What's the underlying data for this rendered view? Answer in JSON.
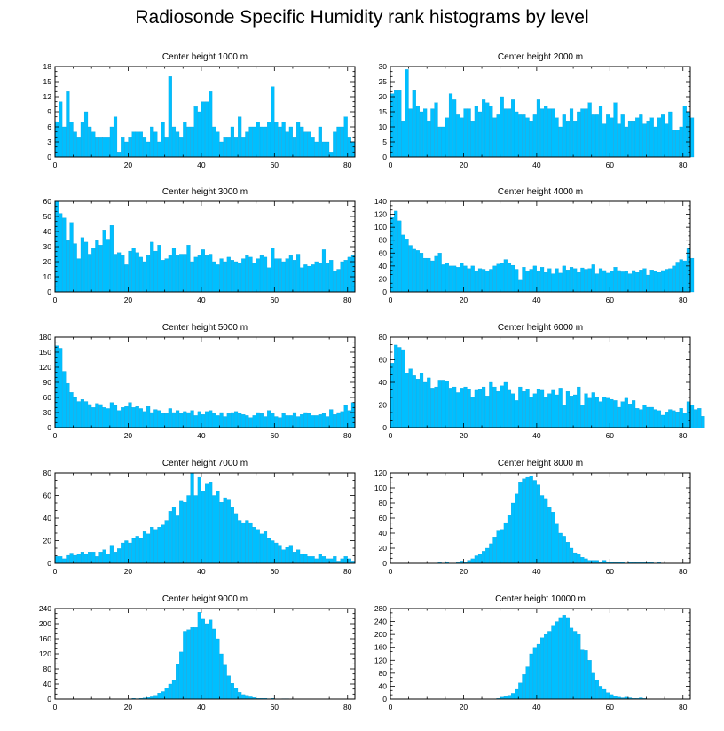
{
  "figure": {
    "title": "Radiosonde Specific Humidity rank histograms by level"
  },
  "colors": {
    "bar": "#00BFFF",
    "bar_edge": "#0099d6",
    "axis": "#000000"
  },
  "chart_data": [
    {
      "type": "bar",
      "title": "Center height 1000 m",
      "xlim": [
        0,
        82
      ],
      "ylim": [
        0,
        18
      ],
      "yticks": [
        0,
        3,
        6,
        9,
        12,
        15,
        18
      ],
      "xticks": [
        0,
        20,
        40,
        60,
        80
      ],
      "values": [
        7,
        11,
        6,
        13,
        7,
        5,
        4,
        7,
        9,
        6,
        5,
        4,
        4,
        4,
        4,
        6,
        8,
        1,
        4,
        3,
        4,
        5,
        5,
        5,
        4,
        3,
        6,
        5,
        3,
        7,
        4,
        16,
        6,
        5,
        4,
        7,
        6,
        6,
        10,
        9,
        11,
        11,
        13,
        6,
        5,
        3,
        4,
        4,
        6,
        4,
        8,
        4,
        5,
        6,
        6,
        7,
        6,
        6,
        7,
        14,
        7,
        6,
        7,
        5,
        6,
        4,
        7,
        6,
        5,
        5,
        4,
        3,
        6,
        3,
        3,
        1,
        5,
        6,
        6,
        8,
        4,
        3
      ]
    },
    {
      "type": "bar",
      "title": "Center height 2000 m",
      "xlim": [
        0,
        82
      ],
      "ylim": [
        0,
        30
      ],
      "yticks": [
        0,
        5,
        10,
        15,
        20,
        25,
        30
      ],
      "xticks": [
        0,
        20,
        40,
        60,
        80
      ],
      "values": [
        21,
        22,
        22,
        12,
        29,
        16,
        22,
        17,
        15,
        16,
        12,
        16,
        18,
        10,
        10,
        13,
        21,
        19,
        14,
        13,
        16,
        16,
        12,
        17,
        15,
        19,
        18,
        17,
        13,
        14,
        20,
        16,
        16,
        19,
        15,
        14,
        14,
        13,
        12,
        14,
        19,
        16,
        17,
        16,
        16,
        13,
        10,
        14,
        12,
        16,
        12,
        15,
        16,
        16,
        18,
        14,
        14,
        17,
        11,
        14,
        13,
        18,
        11,
        14,
        10,
        12,
        12,
        13,
        14,
        11,
        12,
        13,
        10,
        13,
        14,
        11,
        15,
        9,
        9,
        10,
        17,
        15,
        13
      ]
    },
    {
      "type": "bar",
      "title": "Center height 3000 m",
      "xlim": [
        0,
        82
      ],
      "ylim": [
        0,
        60
      ],
      "yticks": [
        0,
        10,
        20,
        30,
        40,
        50,
        60
      ],
      "xticks": [
        0,
        20,
        40,
        60,
        80
      ],
      "values": [
        60,
        52,
        49,
        34,
        46,
        32,
        22,
        36,
        33,
        25,
        29,
        34,
        31,
        41,
        35,
        44,
        25,
        26,
        24,
        18,
        27,
        29,
        26,
        23,
        20,
        24,
        33,
        27,
        31,
        21,
        22,
        24,
        29,
        24,
        25,
        25,
        31,
        20,
        23,
        24,
        28,
        24,
        25,
        20,
        18,
        22,
        20,
        23,
        21,
        20,
        19,
        22,
        24,
        23,
        19,
        22,
        24,
        23,
        16,
        29,
        22,
        22,
        20,
        22,
        24,
        21,
        25,
        16,
        18,
        17,
        18,
        20,
        19,
        28,
        19,
        21,
        14,
        15,
        20,
        21,
        23,
        24
      ]
    },
    {
      "type": "bar",
      "title": "Center height 4000 m",
      "xlim": [
        0,
        82
      ],
      "ylim": [
        0,
        140
      ],
      "yticks": [
        0,
        20,
        40,
        60,
        80,
        100,
        120,
        140
      ],
      "xticks": [
        0,
        20,
        40,
        60,
        80
      ],
      "values": [
        115,
        125,
        110,
        88,
        82,
        72,
        66,
        64,
        60,
        52,
        52,
        48,
        55,
        60,
        42,
        45,
        40,
        40,
        38,
        44,
        40,
        36,
        40,
        32,
        36,
        35,
        32,
        35,
        40,
        43,
        44,
        50,
        44,
        41,
        35,
        18,
        38,
        32,
        35,
        40,
        32,
        38,
        30,
        36,
        28,
        36,
        29,
        40,
        34,
        38,
        36,
        30,
        37,
        35,
        36,
        42,
        28,
        36,
        33,
        29,
        32,
        38,
        33,
        31,
        32,
        28,
        33,
        30,
        34,
        36,
        26,
        34,
        32,
        30,
        33,
        35,
        36,
        40,
        46,
        50,
        48,
        67,
        52
      ]
    },
    {
      "type": "bar",
      "title": "Center height 5000 m",
      "xlim": [
        0,
        82
      ],
      "ylim": [
        0,
        180
      ],
      "yticks": [
        0,
        30,
        60,
        90,
        120,
        150,
        180
      ],
      "xticks": [
        0,
        20,
        40,
        60,
        80
      ],
      "values": [
        163,
        158,
        112,
        88,
        70,
        60,
        52,
        56,
        52,
        46,
        40,
        48,
        46,
        40,
        38,
        50,
        44,
        34,
        40,
        42,
        50,
        40,
        42,
        38,
        32,
        42,
        30,
        36,
        34,
        28,
        28,
        38,
        30,
        34,
        28,
        32,
        30,
        34,
        24,
        32,
        26,
        32,
        34,
        28,
        24,
        30,
        22,
        28,
        30,
        32,
        28,
        26,
        24,
        20,
        24,
        30,
        28,
        22,
        34,
        28,
        22,
        20,
        28,
        24,
        24,
        30,
        22,
        26,
        30,
        28,
        24,
        24,
        26,
        28,
        22,
        36,
        26,
        30,
        32,
        44,
        34,
        50
      ]
    },
    {
      "type": "bar",
      "title": "Center height 6000 m",
      "xlim": [
        0,
        82
      ],
      "ylim": [
        0,
        80
      ],
      "yticks": [
        0,
        20,
        40,
        60,
        80
      ],
      "xticks": [
        0,
        20,
        40,
        60,
        80
      ],
      "values": [
        57,
        73,
        71,
        69,
        48,
        52,
        46,
        43,
        48,
        40,
        44,
        35,
        36,
        42,
        42,
        41,
        35,
        36,
        31,
        35,
        36,
        34,
        27,
        33,
        34,
        36,
        28,
        40,
        36,
        32,
        37,
        40,
        33,
        30,
        24,
        36,
        32,
        34,
        27,
        30,
        34,
        33,
        27,
        30,
        33,
        29,
        35,
        20,
        32,
        28,
        29,
        36,
        20,
        30,
        26,
        31,
        27,
        23,
        27,
        26,
        25,
        24,
        18,
        23,
        26,
        21,
        24,
        17,
        16,
        20,
        18,
        18,
        16,
        15,
        11,
        14,
        16,
        15,
        14,
        17,
        13,
        23,
        20,
        16,
        17,
        10
      ]
    },
    {
      "type": "bar",
      "title": "Center height 7000 m",
      "xlim": [
        0,
        82
      ],
      "ylim": [
        0,
        80
      ],
      "yticks": [
        0,
        20,
        40,
        60,
        80
      ],
      "xticks": [
        0,
        20,
        40,
        60,
        80
      ],
      "values": [
        6,
        6,
        4,
        7,
        9,
        7,
        8,
        10,
        8,
        10,
        10,
        6,
        10,
        12,
        8,
        16,
        10,
        13,
        18,
        20,
        18,
        22,
        24,
        22,
        28,
        26,
        32,
        30,
        32,
        34,
        38,
        46,
        50,
        42,
        55,
        54,
        60,
        80,
        60,
        76,
        64,
        70,
        72,
        60,
        64,
        54,
        58,
        56,
        50,
        44,
        38,
        36,
        38,
        36,
        32,
        30,
        26,
        28,
        22,
        20,
        18,
        16,
        12,
        14,
        16,
        10,
        12,
        8,
        8,
        6,
        6,
        4,
        8,
        6,
        4,
        4,
        6,
        2,
        4,
        6,
        4,
        2
      ]
    },
    {
      "type": "bar",
      "title": "Center height 8000 m",
      "xlim": [
        0,
        82
      ],
      "ylim": [
        0,
        120
      ],
      "yticks": [
        0,
        20,
        40,
        60,
        80,
        100,
        120
      ],
      "xticks": [
        0,
        20,
        40,
        60,
        80
      ],
      "values": [
        0,
        0,
        0,
        0,
        0,
        0,
        0,
        0,
        0,
        0,
        0,
        0,
        0,
        1,
        0,
        2,
        0,
        0,
        1,
        3,
        2,
        4,
        6,
        10,
        12,
        16,
        20,
        26,
        35,
        44,
        45,
        54,
        64,
        80,
        92,
        108,
        112,
        114,
        116,
        110,
        104,
        90,
        86,
        74,
        68,
        52,
        40,
        36,
        28,
        20,
        14,
        12,
        8,
        6,
        4,
        4,
        4,
        2,
        4,
        2,
        2,
        1,
        2,
        2,
        0,
        2,
        1,
        1,
        1,
        1,
        2,
        1,
        0,
        1,
        0,
        0,
        0,
        0,
        0,
        0,
        0
      ]
    },
    {
      "type": "bar",
      "title": "Center height 9000 m",
      "xlim": [
        0,
        82
      ],
      "ylim": [
        0,
        240
      ],
      "yticks": [
        0,
        40,
        80,
        120,
        160,
        200,
        240
      ],
      "xticks": [
        0,
        20,
        40,
        60,
        80
      ],
      "values": [
        0,
        0,
        0,
        0,
        0,
        0,
        0,
        0,
        0,
        0,
        0,
        0,
        0,
        0,
        0,
        0,
        0,
        0,
        0,
        0,
        0,
        2,
        1,
        2,
        3,
        4,
        6,
        10,
        16,
        20,
        30,
        40,
        50,
        92,
        125,
        180,
        184,
        190,
        190,
        230,
        212,
        200,
        210,
        186,
        160,
        120,
        90,
        62,
        42,
        30,
        18,
        12,
        10,
        6,
        4,
        2,
        2,
        2,
        1,
        2,
        0,
        0,
        1,
        1,
        0,
        0,
        0,
        0,
        0,
        0,
        0,
        0,
        0,
        0,
        0,
        0,
        0,
        0,
        0,
        0,
        0,
        0,
        0
      ]
    },
    {
      "type": "bar",
      "title": "Center height 10000 m",
      "xlim": [
        0,
        82
      ],
      "ylim": [
        0,
        280
      ],
      "yticks": [
        0,
        40,
        80,
        120,
        160,
        200,
        240,
        280
      ],
      "xticks": [
        0,
        20,
        40,
        60,
        80
      ],
      "values": [
        0,
        0,
        0,
        0,
        0,
        0,
        0,
        0,
        0,
        0,
        0,
        0,
        0,
        0,
        0,
        0,
        0,
        0,
        0,
        0,
        0,
        0,
        0,
        0,
        0,
        0,
        0,
        0,
        0,
        2,
        6,
        8,
        12,
        18,
        30,
        50,
        76,
        100,
        140,
        160,
        170,
        190,
        200,
        210,
        226,
        240,
        250,
        260,
        250,
        220,
        210,
        200,
        152,
        150,
        120,
        80,
        60,
        40,
        30,
        20,
        14,
        10,
        6,
        4,
        6,
        4,
        2,
        2,
        4,
        2,
        1,
        0,
        0,
        0,
        0,
        0,
        0,
        0,
        0,
        0,
        0,
        0,
        0
      ]
    }
  ]
}
